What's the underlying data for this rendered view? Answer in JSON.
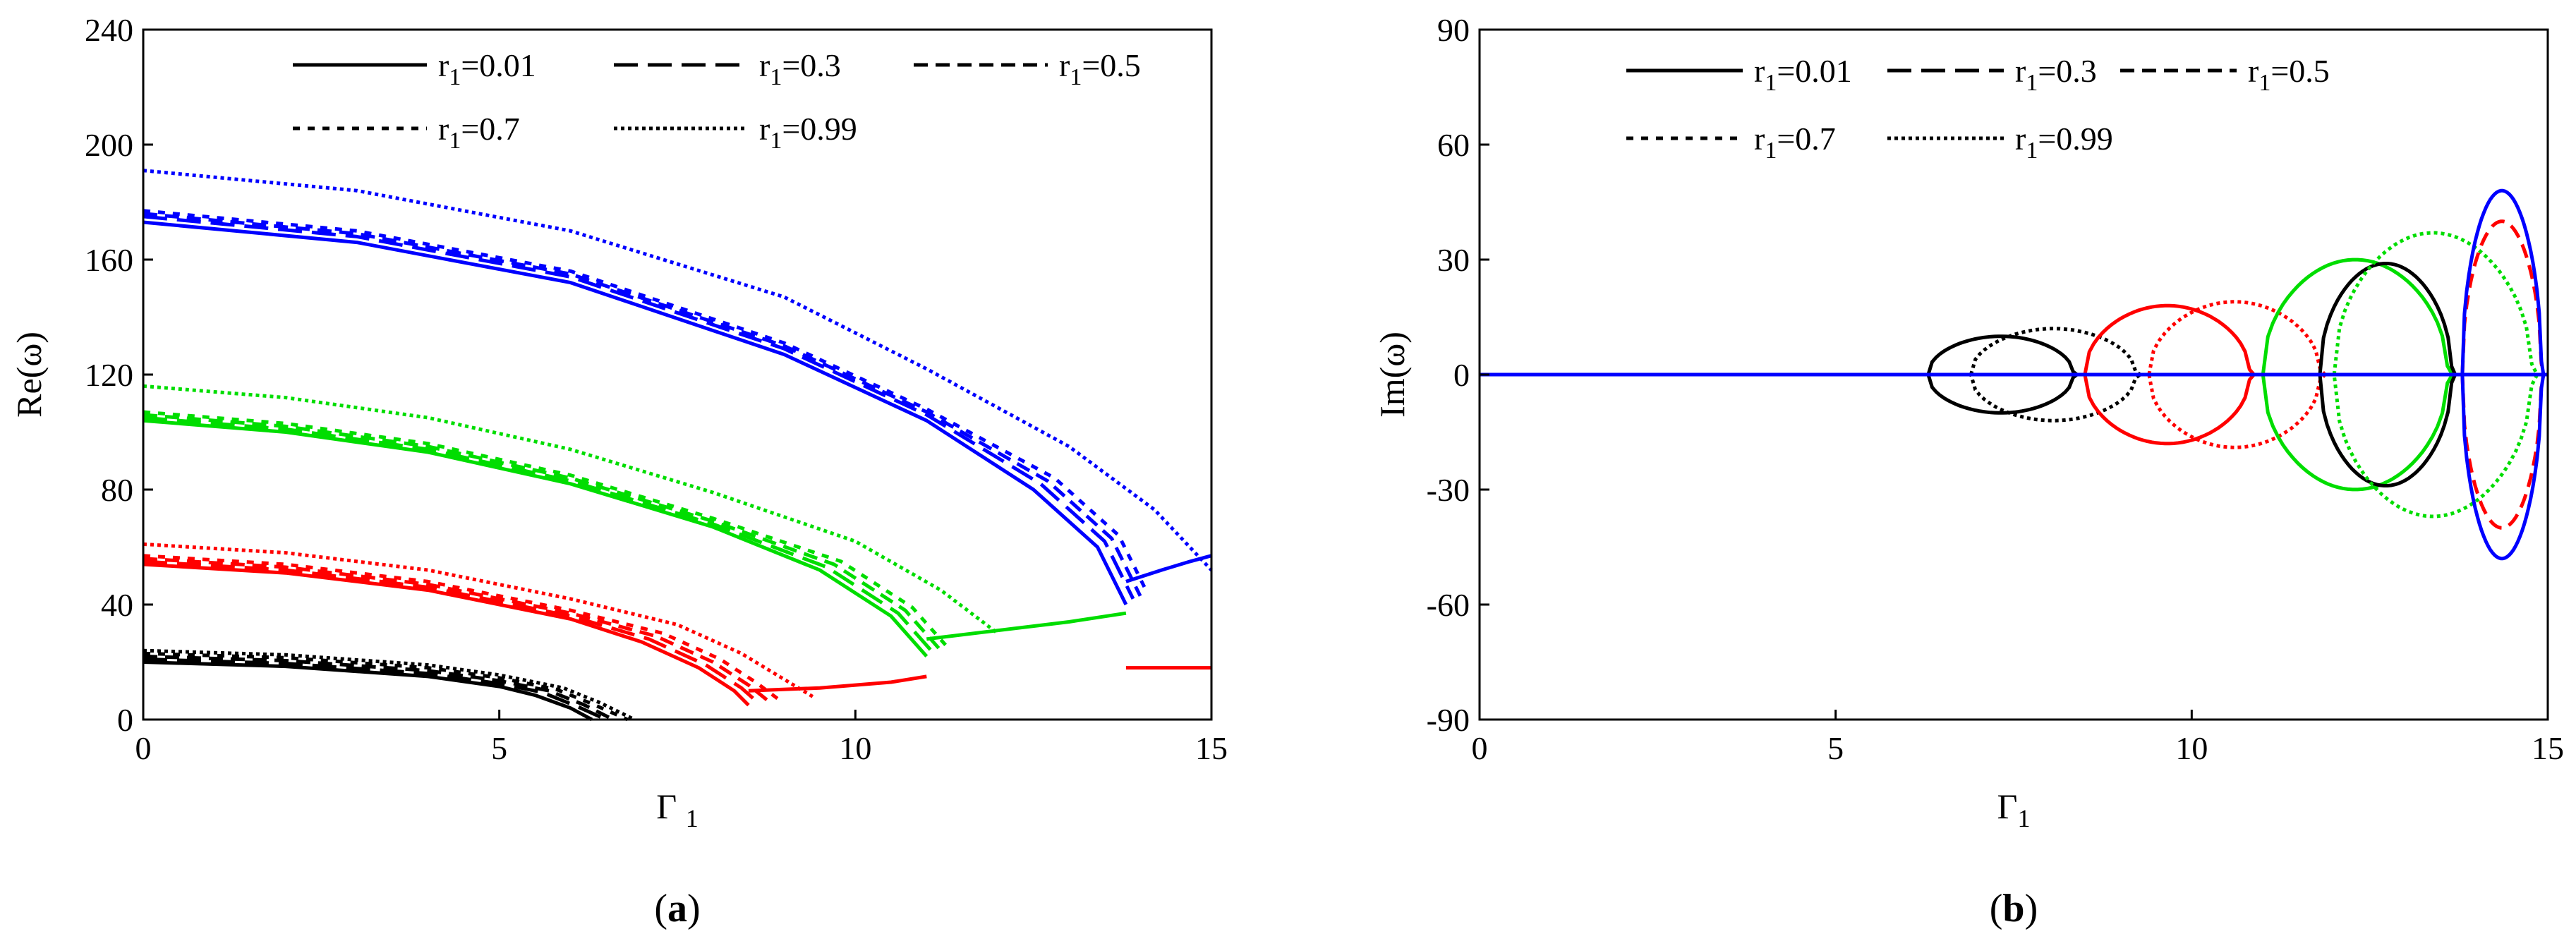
{
  "chart_data": [
    {
      "type": "line",
      "panel_label": "a",
      "xlabel": "Γ1",
      "ylabel": "Re(ω)",
      "xlim": [
        0,
        15
      ],
      "ylim": [
        0,
        240
      ],
      "xticks": [
        0,
        5,
        10,
        15
      ],
      "yticks": [
        0,
        40,
        80,
        120,
        160,
        200,
        240
      ],
      "grid": false,
      "legend_position": "top",
      "legend": [
        {
          "label": "r1=0.01",
          "style": "solid"
        },
        {
          "label": "r1=0.3",
          "style": "long-dash"
        },
        {
          "label": "r1=0.5",
          "style": "dash"
        },
        {
          "label": "r1=0.7",
          "style": "short-dash"
        },
        {
          "label": "r1=0.99",
          "style": "dot"
        }
      ],
      "colors": {
        "mode1": "#000000",
        "mode2": "#ff0000",
        "mode3": "#00dd00",
        "mode4": "#0000ff"
      },
      "series": [
        {
          "mode": 1,
          "color": "#000000",
          "r1": 0.01,
          "x": [
            0,
            2,
            4,
            5,
            5.5,
            6.0,
            6.3
          ],
          "y": [
            20,
            18.5,
            15,
            11.5,
            8.5,
            4,
            0
          ]
        },
        {
          "mode": 1,
          "color": "#000000",
          "r1": 0.3,
          "x": [
            0,
            2,
            4,
            5,
            5.6,
            6.1,
            6.5
          ],
          "y": [
            21,
            19.5,
            16,
            12.5,
            9.5,
            4.5,
            0
          ]
        },
        {
          "mode": 1,
          "color": "#000000",
          "r1": 0.5,
          "x": [
            0,
            2,
            4,
            5,
            5.7,
            6.2,
            6.6
          ],
          "y": [
            22,
            20.5,
            17,
            13.5,
            10,
            5,
            0
          ]
        },
        {
          "mode": 1,
          "color": "#000000",
          "r1": 0.7,
          "x": [
            0,
            2,
            4,
            5,
            5.8,
            6.3,
            6.8
          ],
          "y": [
            23,
            21.5,
            18,
            14.5,
            10.5,
            5.5,
            0
          ]
        },
        {
          "mode": 1,
          "color": "#000000",
          "r1": 0.99,
          "x": [
            0,
            2,
            4,
            5,
            5.9,
            6.4,
            6.9
          ],
          "y": [
            24,
            22.5,
            19,
            15.5,
            11,
            6,
            0
          ]
        },
        {
          "mode": 2,
          "color": "#ff0000",
          "r1": 0.01,
          "x": [
            0,
            2,
            4,
            6,
            7,
            7.8,
            8.3,
            8.5
          ],
          "y": [
            54,
            51,
            45,
            35,
            27,
            18,
            10,
            5
          ]
        },
        {
          "mode": 2,
          "color": "#ff0000",
          "r1": 0.3,
          "x": [
            0,
            2,
            4,
            6,
            7.1,
            7.9,
            8.4,
            8.65
          ],
          "y": [
            55,
            52,
            46,
            36,
            28,
            19,
            11,
            5.5
          ]
        },
        {
          "mode": 2,
          "color": "#ff0000",
          "r1": 0.5,
          "x": [
            0,
            2,
            4,
            6,
            7.2,
            8.0,
            8.5,
            8.8
          ],
          "y": [
            56,
            53,
            47,
            37,
            29,
            20,
            12,
            6
          ]
        },
        {
          "mode": 2,
          "color": "#ff0000",
          "r1": 0.7,
          "x": [
            0,
            2,
            4,
            6,
            7.3,
            8.1,
            8.6,
            8.95
          ],
          "y": [
            57,
            54,
            48,
            38,
            30,
            21,
            13,
            6.5
          ]
        },
        {
          "mode": 2,
          "color": "#ff0000",
          "r1": 0.99,
          "x": [
            0,
            2,
            4,
            6,
            7.5,
            8.4,
            9.0,
            9.4
          ],
          "y": [
            61,
            58,
            52,
            42,
            33,
            23,
            14,
            8
          ]
        },
        {
          "mode": 2,
          "color": "#ff0000",
          "r1": 0.01,
          "x": [
            8.5,
            9.5,
            10.5,
            11.0
          ],
          "y": [
            10,
            11,
            13,
            15
          ]
        },
        {
          "mode": 3,
          "color": "#00dd00",
          "r1": 0.01,
          "x": [
            0,
            2,
            4,
            6,
            8,
            9.5,
            10.5,
            11.0
          ],
          "y": [
            104,
            100,
            93,
            82,
            67,
            52,
            36,
            22
          ]
        },
        {
          "mode": 3,
          "color": "#00dd00",
          "r1": 0.3,
          "x": [
            0,
            2,
            4,
            6,
            8,
            9.6,
            10.6,
            11.1
          ],
          "y": [
            105,
            101,
            94,
            83,
            68,
            53,
            37,
            23
          ]
        },
        {
          "mode": 3,
          "color": "#00dd00",
          "r1": 0.5,
          "x": [
            0,
            2,
            4,
            6,
            8,
            9.7,
            10.7,
            11.2
          ],
          "y": [
            106,
            102,
            95,
            84,
            69,
            54,
            38,
            24
          ]
        },
        {
          "mode": 3,
          "color": "#00dd00",
          "r1": 0.7,
          "x": [
            0,
            2,
            4,
            6,
            8,
            9.8,
            10.8,
            11.3
          ],
          "y": [
            107,
            103,
            96,
            85,
            70,
            55,
            39,
            25
          ]
        },
        {
          "mode": 3,
          "color": "#00dd00",
          "r1": 0.99,
          "x": [
            0,
            2,
            4,
            6,
            8,
            10,
            11.2,
            12.0
          ],
          "y": [
            116,
            112,
            105,
            94,
            79,
            62,
            45,
            30
          ]
        },
        {
          "mode": 3,
          "color": "#00dd00",
          "r1": 0.01,
          "x": [
            11.0,
            12,
            13,
            13.8
          ],
          "y": [
            28,
            31,
            34,
            37
          ]
        },
        {
          "mode": 4,
          "color": "#0000ff",
          "r1": 0.01,
          "x": [
            0,
            3,
            6,
            9,
            11,
            12.5,
            13.4,
            13.8
          ],
          "y": [
            173,
            166,
            152,
            127,
            104,
            80,
            60,
            40
          ]
        },
        {
          "mode": 4,
          "color": "#0000ff",
          "r1": 0.3,
          "x": [
            0,
            3,
            6,
            9,
            11,
            12.6,
            13.5,
            13.9
          ],
          "y": [
            175,
            168,
            154,
            129,
            106,
            82,
            62,
            42
          ]
        },
        {
          "mode": 4,
          "color": "#0000ff",
          "r1": 0.5,
          "x": [
            0,
            3,
            6,
            9,
            11,
            12.7,
            13.6,
            14.0
          ],
          "y": [
            176,
            169,
            155,
            130,
            107,
            83,
            63,
            43
          ]
        },
        {
          "mode": 4,
          "color": "#0000ff",
          "r1": 0.7,
          "x": [
            0,
            3,
            6,
            9,
            11,
            12.8,
            13.7,
            14.1
          ],
          "y": [
            177,
            170,
            156,
            131,
            108,
            84,
            64,
            44
          ]
        },
        {
          "mode": 4,
          "color": "#0000ff",
          "r1": 0.99,
          "x": [
            0,
            3,
            6,
            9,
            11,
            13,
            14.2,
            15.0
          ],
          "y": [
            191,
            184,
            170,
            147,
            122,
            95,
            73,
            52
          ]
        },
        {
          "mode": 4,
          "color": "#0000ff",
          "r1": 0.01,
          "x": [
            13.8,
            14.3,
            14.7,
            15.0
          ],
          "y": [
            48,
            52,
            55,
            57
          ]
        },
        {
          "mode": 2,
          "color": "#ff0000",
          "r1": 0.01,
          "x": [
            13.8,
            14.4,
            15.0
          ],
          "y": [
            18,
            18,
            18
          ]
        }
      ]
    },
    {
      "type": "line",
      "panel_label": "b",
      "xlabel": "Γ1",
      "ylabel": "Im(ω)",
      "xlim": [
        0,
        15
      ],
      "ylim": [
        -90,
        90
      ],
      "xticks": [
        0,
        5,
        10,
        15
      ],
      "yticks": [
        -90,
        -60,
        -30,
        0,
        30,
        60,
        90
      ],
      "grid": false,
      "legend_position": "top",
      "legend": [
        {
          "label": "r1=0.01",
          "style": "solid"
        },
        {
          "label": "r1=0.3",
          "style": "long-dash"
        },
        {
          "label": "r1=0.5",
          "style": "dash"
        },
        {
          "label": "r1=0.7",
          "style": "short-dash"
        },
        {
          "label": "r1=0.99",
          "style": "dot"
        }
      ],
      "baseline": {
        "x": [
          0,
          15
        ],
        "y": [
          0,
          0
        ],
        "color": "#0000ff"
      },
      "loops": [
        {
          "color": "#000000",
          "style": "solid",
          "x0": 6.3,
          "x1": 8.5,
          "amp": 10
        },
        {
          "color": "#000000",
          "style": "dot",
          "x0": 6.9,
          "x1": 9.4,
          "amp": 12
        },
        {
          "color": "#ff0000",
          "style": "solid",
          "x0": 8.5,
          "x1": 11.0,
          "amp": 18
        },
        {
          "color": "#ff0000",
          "style": "dot",
          "x0": 9.4,
          "x1": 12.0,
          "amp": 19
        },
        {
          "color": "#00dd00",
          "style": "solid",
          "x0": 11.0,
          "x1": 13.8,
          "amp": 30
        },
        {
          "color": "#000000",
          "style": "solid",
          "x0": 11.8,
          "x1": 13.8,
          "amp": 29
        },
        {
          "color": "#00dd00",
          "style": "dot",
          "x0": 12.0,
          "x1": 15.0,
          "amp": 37
        },
        {
          "color": "#ff0000",
          "style": "dash",
          "x0": 13.8,
          "x1": 15.0,
          "amp": 40
        },
        {
          "color": "#0000ff",
          "style": "solid",
          "x0": 13.8,
          "x1": 15.0,
          "amp": 48
        }
      ]
    }
  ],
  "captions": {
    "a": "a",
    "b": "b"
  }
}
